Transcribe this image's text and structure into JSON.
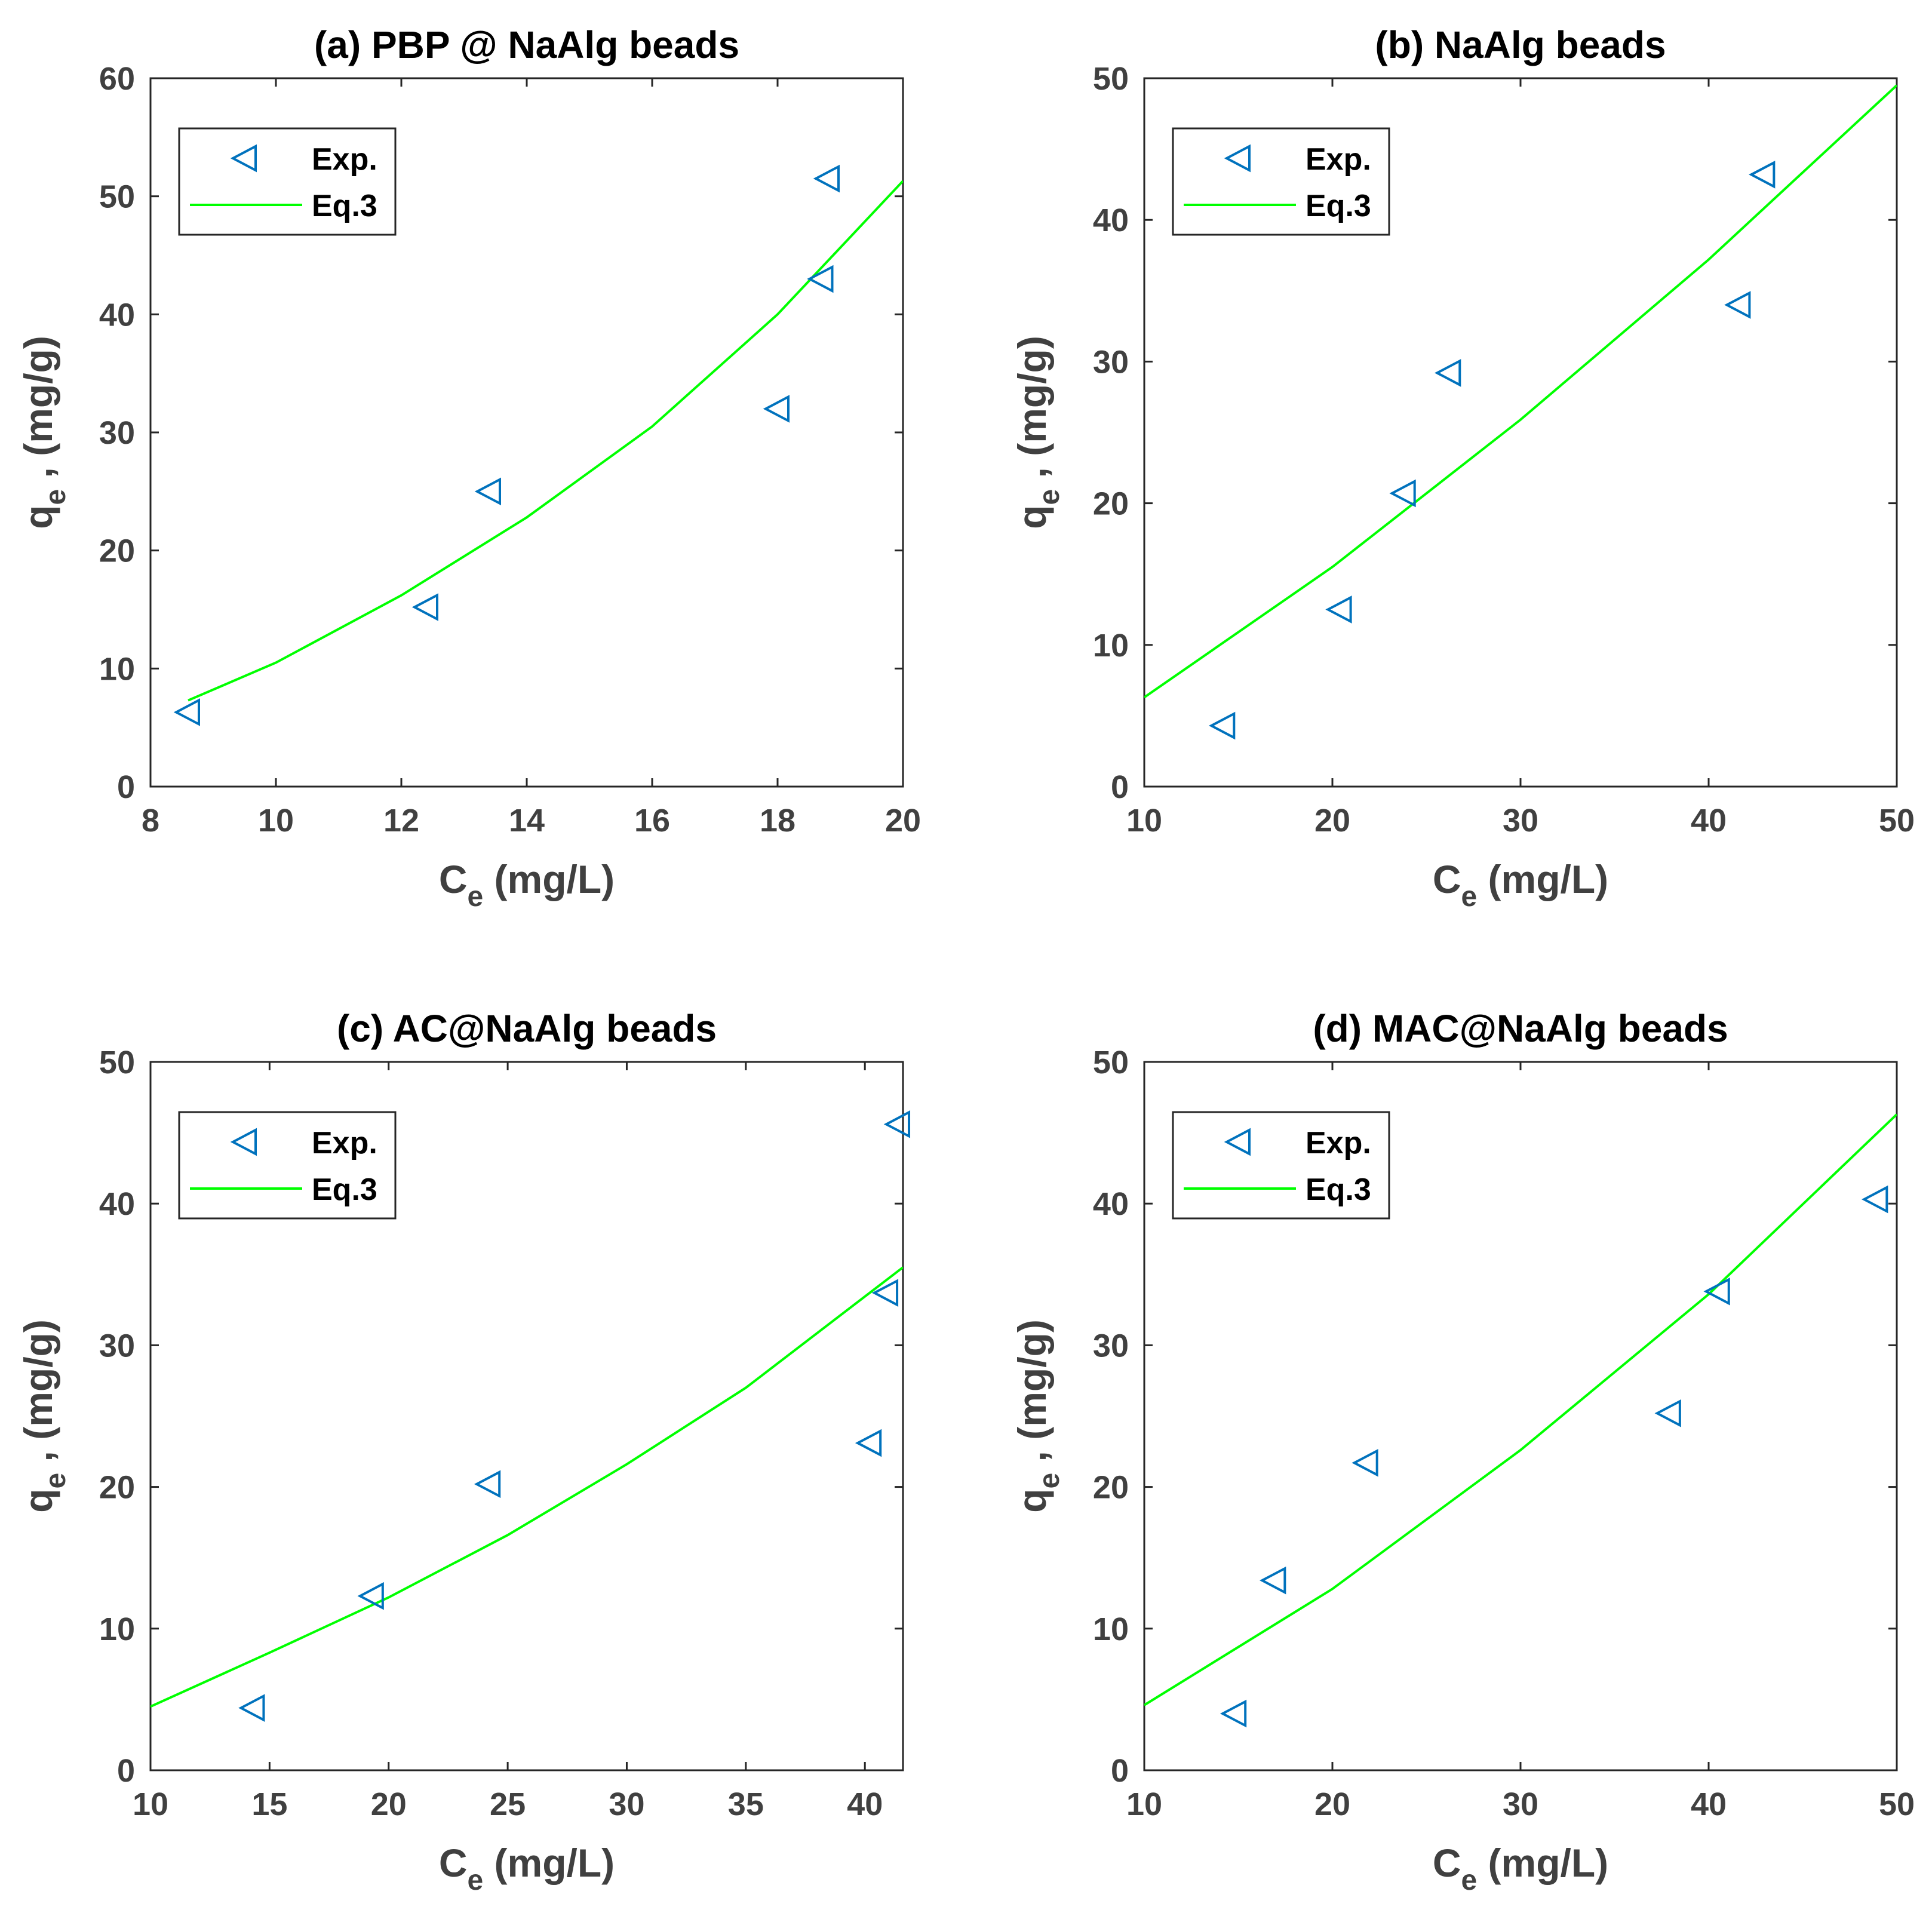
{
  "chart_data": [
    {
      "type": "scatter",
      "title": "(a) PBP @ NaAlg beads",
      "xlabel": {
        "main": "C",
        "sub": "e",
        "unit": " (mg/L)"
      },
      "ylabel": {
        "main": "q",
        "sub": "e",
        "unit": " , (mg/g)"
      },
      "xlim": [
        8,
        20
      ],
      "ylim": [
        0,
        60
      ],
      "xticks": [
        8,
        10,
        12,
        14,
        16,
        18,
        20
      ],
      "yticks": [
        0,
        10,
        20,
        30,
        40,
        50,
        60
      ],
      "legend": {
        "location": "top-left",
        "entries": [
          "Exp.",
          "Eq.3"
        ]
      },
      "series": [
        {
          "name": "Exp.",
          "kind": "scatter",
          "marker": "triangle-left",
          "color": "#0072BD",
          "x": [
            8.6,
            12.4,
            13.4,
            18.0,
            18.7,
            18.8
          ],
          "y": [
            6.3,
            15.2,
            25.0,
            32.0,
            43.0,
            51.5
          ]
        },
        {
          "name": "Eq.3",
          "kind": "line",
          "color": "#00FF00",
          "x": [
            8.6,
            10,
            12,
            14,
            16,
            18,
            20
          ],
          "y": [
            7.3,
            10.5,
            16.2,
            22.8,
            30.5,
            40.0,
            51.3
          ]
        }
      ]
    },
    {
      "type": "scatter",
      "title": "(b) NaAlg beads",
      "xlabel": {
        "main": "C",
        "sub": "e",
        "unit": " (mg/L)"
      },
      "ylabel": {
        "main": "q",
        "sub": "e",
        "unit": " , (mg/g)"
      },
      "xlim": [
        10,
        50
      ],
      "ylim": [
        0,
        50
      ],
      "xticks": [
        10,
        20,
        30,
        40,
        50
      ],
      "yticks": [
        0,
        10,
        20,
        30,
        40,
        50
      ],
      "legend": {
        "location": "top-left",
        "entries": [
          "Exp.",
          "Eq.3"
        ]
      },
      "series": [
        {
          "name": "Exp.",
          "kind": "scatter",
          "marker": "triangle-left",
          "color": "#0072BD",
          "x": [
            14.2,
            20.4,
            23.8,
            26.2,
            41.6,
            42.9
          ],
          "y": [
            4.3,
            12.5,
            20.7,
            29.2,
            34.0,
            43.2
          ]
        },
        {
          "name": "Eq.3",
          "kind": "line",
          "color": "#00FF00",
          "x": [
            10,
            20,
            30,
            40,
            50
          ],
          "y": [
            6.3,
            15.5,
            25.9,
            37.2,
            49.5
          ]
        }
      ]
    },
    {
      "type": "scatter",
      "title": "(c) AC@NaAlg beads",
      "xlabel": {
        "main": "C",
        "sub": "e",
        "unit": " (mg/L)"
      },
      "ylabel": {
        "main": "q",
        "sub": "e",
        "unit": " , (mg/g)"
      },
      "xlim": [
        10,
        41.6
      ],
      "ylim": [
        0,
        50
      ],
      "xticks": [
        10,
        15,
        20,
        25,
        30,
        35,
        40
      ],
      "yticks": [
        0,
        10,
        20,
        30,
        40,
        50
      ],
      "legend": {
        "location": "top-left",
        "entries": [
          "Exp.",
          "Eq.3"
        ]
      },
      "series": [
        {
          "name": "Exp.",
          "kind": "scatter",
          "marker": "triangle-left",
          "color": "#0072BD",
          "x": [
            14.3,
            19.3,
            24.2,
            40.2,
            40.9,
            41.4
          ],
          "y": [
            4.4,
            12.3,
            20.2,
            23.1,
            33.7,
            45.6
          ]
        },
        {
          "name": "Eq.3",
          "kind": "line",
          "color": "#00FF00",
          "x": [
            10,
            15,
            20,
            25,
            30,
            35,
            41.6
          ],
          "y": [
            4.5,
            8.3,
            12.2,
            16.6,
            21.6,
            27.0,
            35.5
          ]
        }
      ]
    },
    {
      "type": "scatter",
      "title": "(d) MAC@NaAlg beads",
      "xlabel": {
        "main": "C",
        "sub": "e",
        "unit": " (mg/L)"
      },
      "ylabel": {
        "main": "q",
        "sub": "e",
        "unit": " , (mg/g)"
      },
      "xlim": [
        10,
        50
      ],
      "ylim": [
        0,
        50
      ],
      "xticks": [
        10,
        20,
        30,
        40,
        50
      ],
      "yticks": [
        0,
        10,
        20,
        30,
        40,
        50
      ],
      "legend": {
        "location": "top-left",
        "entries": [
          "Exp.",
          "Eq.3"
        ]
      },
      "series": [
        {
          "name": "Exp.",
          "kind": "scatter",
          "marker": "triangle-left",
          "color": "#0072BD",
          "x": [
            14.8,
            16.9,
            21.8,
            37.9,
            40.5,
            48.9
          ],
          "y": [
            4.0,
            13.4,
            21.7,
            25.2,
            33.8,
            40.3
          ]
        },
        {
          "name": "Eq.3",
          "kind": "line",
          "color": "#00FF00",
          "x": [
            10,
            20,
            30,
            40,
            50
          ],
          "y": [
            4.6,
            12.8,
            22.6,
            33.6,
            46.3
          ]
        }
      ]
    }
  ]
}
